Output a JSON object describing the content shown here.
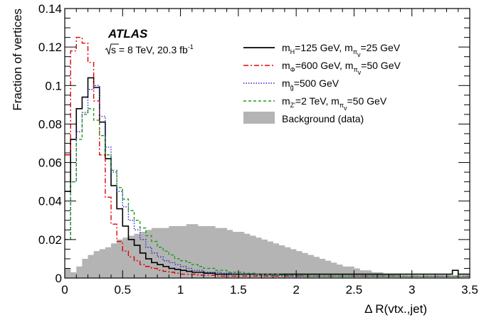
{
  "chart_data": {
    "type": "line",
    "xlabel": "Δ R(vtx.,jet)",
    "ylabel": "Fraction of vertices",
    "xlim": [
      0,
      3.5
    ],
    "ylim": [
      0,
      0.14
    ],
    "grid": false,
    "legend_position": "top-right",
    "annotation": {
      "experiment": "ATLAS",
      "sqrt_s": "s = 8 TeV, 20.3 fb",
      "lumi_sup": "-1"
    },
    "xticks": [
      "0",
      "0.5",
      "1",
      "1.5",
      "2",
      "2.5",
      "3",
      "3.5"
    ],
    "yticks": [
      "0",
      "0.02",
      "0.04",
      "0.06",
      "0.08",
      "0.1",
      "0.12",
      "0.14"
    ],
    "x_bin_edges": [
      0,
      0.05,
      0.1,
      0.15,
      0.2,
      0.25,
      0.3,
      0.35,
      0.4,
      0.45,
      0.5,
      0.55,
      0.6,
      0.65,
      0.7,
      0.75,
      0.8,
      0.85,
      0.9,
      0.95,
      1.0,
      1.05,
      1.1,
      1.15,
      1.2,
      1.25,
      1.3,
      1.35,
      1.4,
      1.45,
      1.5,
      1.55,
      1.6,
      1.65,
      1.7,
      1.75,
      1.8,
      1.85,
      1.9,
      1.95,
      2.0,
      2.05,
      2.1,
      2.15,
      2.2,
      2.25,
      2.3,
      2.35,
      2.4,
      2.45,
      2.5,
      2.55,
      2.6,
      2.65,
      2.7,
      2.75,
      2.8,
      2.85,
      2.9,
      2.95,
      3.0,
      3.05,
      3.1,
      3.15,
      3.2,
      3.25,
      3.3,
      3.35,
      3.4,
      3.45,
      3.5
    ],
    "series": [
      {
        "name": "Background (data)",
        "style": "filled",
        "color": "#b4b4b4",
        "values": [
          0.005,
          0.003,
          0.006,
          0.01,
          0.012,
          0.014,
          0.015,
          0.016,
          0.018,
          0.02,
          0.021,
          0.022,
          0.023,
          0.024,
          0.025,
          0.026,
          0.026,
          0.026,
          0.027,
          0.027,
          0.027,
          0.028,
          0.028,
          0.027,
          0.027,
          0.027,
          0.026,
          0.026,
          0.025,
          0.024,
          0.024,
          0.023,
          0.022,
          0.021,
          0.02,
          0.019,
          0.018,
          0.017,
          0.016,
          0.015,
          0.014,
          0.013,
          0.012,
          0.011,
          0.01,
          0.009,
          0.008,
          0.007,
          0.006,
          0.006,
          0.005,
          0.004,
          0.004,
          0.003,
          0.003,
          0.002,
          0.002,
          0.002,
          0.001,
          0.001,
          0.001,
          0.001,
          0.001,
          0.001,
          0.001,
          0.001,
          0.001,
          0.001,
          0.001,
          0.001
        ]
      },
      {
        "name": "mH=125 GeV, mπv=25 GeV",
        "style": "solid",
        "color": "#000000",
        "values": [
          0.045,
          0.072,
          0.088,
          0.094,
          0.104,
          0.099,
          0.081,
          0.062,
          0.048,
          0.036,
          0.027,
          0.02,
          0.017,
          0.013,
          0.01,
          0.008,
          0.007,
          0.006,
          0.005,
          0.0045,
          0.004,
          0.0035,
          0.003,
          0.003,
          0.0025,
          0.0025,
          0.002,
          0.002,
          0.002,
          0.002,
          0.002,
          0.002,
          0.002,
          0.002,
          0.002,
          0.002,
          0.002,
          0.002,
          0.002,
          0.002,
          0.002,
          0.002,
          0.002,
          0.002,
          0.002,
          0.002,
          0.002,
          0.002,
          0.002,
          0.002,
          0.002,
          0.002,
          0.002,
          0.002,
          0.002,
          0.002,
          0.002,
          0.002,
          0.002,
          0.002,
          0.002,
          0.002,
          0.002,
          0.002,
          0.002,
          0.002,
          0.002,
          0.004,
          0.002,
          0.002
        ]
      },
      {
        "name": "mΦ=600 GeV, mπv=50 GeV",
        "style": "dashdot",
        "color": "#e00000",
        "values": [
          0.064,
          0.118,
          0.125,
          0.122,
          0.112,
          0.092,
          0.064,
          0.042,
          0.028,
          0.019,
          0.014,
          0.011,
          0.009,
          0.007,
          0.006,
          0.005,
          0.004,
          0.0035,
          0.003,
          0.0025,
          0.002,
          0.002,
          0.002,
          0.0015,
          0.0015,
          0.0015,
          0.001,
          0.001,
          0.001,
          0.001,
          0.001,
          0.001,
          0.001,
          0.001,
          0.001,
          0.001,
          0.001,
          0.001,
          0.001,
          0.001,
          0.001,
          0.001,
          0.001,
          0.001,
          0.001,
          0.001,
          0.001,
          0.001,
          0.001,
          0.001,
          0.001,
          0.001,
          0.001,
          0.001,
          0.001,
          0.001,
          0.001,
          0.001,
          0.001,
          0.001,
          0.001,
          0.001,
          0.001,
          0.001,
          0.001,
          0.001,
          0.001,
          0.001,
          0.001,
          0.001
        ]
      },
      {
        "name": "mg̃=500 GeV",
        "style": "dotted",
        "color": "#2828c8",
        "values": [
          0.02,
          0.05,
          0.076,
          0.086,
          0.098,
          0.1,
          0.084,
          0.068,
          0.055,
          0.045,
          0.037,
          0.03,
          0.025,
          0.02,
          0.016,
          0.013,
          0.011,
          0.009,
          0.008,
          0.007,
          0.006,
          0.005,
          0.004,
          0.004,
          0.003,
          0.003,
          0.003,
          0.0025,
          0.0025,
          0.002,
          0.002,
          0.002,
          0.002,
          0.0015,
          0.0015,
          0.0015,
          0.0015,
          0.0015,
          0.001,
          0.001,
          0.001,
          0.001,
          0.001,
          0.001,
          0.001,
          0.001,
          0.001,
          0.001,
          0.001,
          0.001,
          0.001,
          0.001,
          0.001,
          0.001,
          0.001,
          0.001,
          0.001,
          0.001,
          0.001,
          0.001,
          0.001,
          0.001,
          0.001,
          0.001,
          0.001,
          0.001,
          0.001,
          0.001,
          0.001,
          0.001
        ]
      },
      {
        "name": "mZ'=2 TeV, mπv=50 GeV",
        "style": "dashed",
        "color": "#1a9a1a",
        "values": [
          0.02,
          0.05,
          0.072,
          0.085,
          0.088,
          0.082,
          0.074,
          0.064,
          0.056,
          0.047,
          0.041,
          0.035,
          0.03,
          0.026,
          0.022,
          0.019,
          0.016,
          0.014,
          0.012,
          0.01,
          0.009,
          0.008,
          0.007,
          0.006,
          0.005,
          0.005,
          0.004,
          0.004,
          0.003,
          0.003,
          0.003,
          0.0025,
          0.0025,
          0.002,
          0.002,
          0.002,
          0.002,
          0.0015,
          0.0015,
          0.0015,
          0.0015,
          0.001,
          0.001,
          0.001,
          0.001,
          0.001,
          0.001,
          0.001,
          0.001,
          0.001,
          0.001,
          0.001,
          0.001,
          0.001,
          0.001,
          0.001,
          0.001,
          0.001,
          0.001,
          0.001,
          0.001,
          0.001,
          0.001,
          0.001,
          0.001,
          0.001,
          0.001,
          0.001,
          0.001,
          0.001
        ]
      }
    ],
    "legend": [
      {
        "key": "higgs",
        "style": "solid",
        "color": "#000000",
        "parts": [
          [
            "m",
            ""
          ],
          [
            "H",
            "sub"
          ],
          [
            "=125 GeV, m",
            ""
          ],
          [
            "π",
            "sub"
          ],
          [
            "v",
            "subsub"
          ],
          [
            "=25 GeV",
            ""
          ]
        ]
      },
      {
        "key": "phi",
        "style": "dashdot",
        "color": "#e00000",
        "parts": [
          [
            "m",
            ""
          ],
          [
            "Φ",
            "sub"
          ],
          [
            "=600 GeV, m",
            ""
          ],
          [
            "π",
            "sub"
          ],
          [
            "v",
            "subsub"
          ],
          [
            "=50 GeV",
            ""
          ]
        ]
      },
      {
        "key": "gluino",
        "style": "dotted",
        "color": "#2828c8",
        "parts": [
          [
            "m",
            ""
          ],
          [
            "g̃",
            "sub"
          ],
          [
            "=500 GeV",
            ""
          ]
        ]
      },
      {
        "key": "zprime",
        "style": "dashed",
        "color": "#1a9a1a",
        "parts": [
          [
            "m",
            ""
          ],
          [
            "Z'",
            "sub"
          ],
          [
            "=2 TeV, m",
            ""
          ],
          [
            "π",
            "sub"
          ],
          [
            "v",
            "subsub"
          ],
          [
            "=50 GeV",
            ""
          ]
        ]
      },
      {
        "key": "background",
        "style": "filled",
        "color": "#b4b4b4",
        "parts": [
          [
            "Background (data)",
            ""
          ]
        ]
      }
    ]
  }
}
